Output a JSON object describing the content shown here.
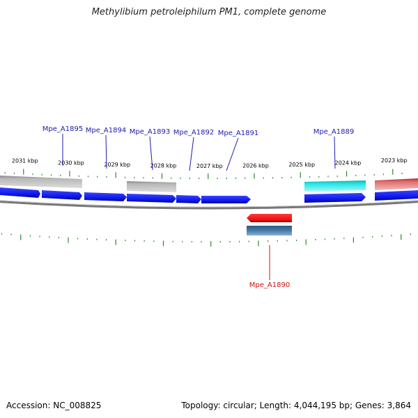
{
  "title": "Methylibium petroleiphilum PM1, complete genome",
  "footer": {
    "accession": "Accession: NC_008825",
    "summary": "Topology: circular; Length: 4,044,195 bp; Genes: 3,864"
  },
  "colors": {
    "forward_cds": "#0a14e6",
    "reverse_cds": "#ee1111",
    "label_forward": "#1a1ab0",
    "label_reverse": "#cc1111",
    "tick": "#2a8a2a",
    "backbone": "#888888",
    "gray_feature": "#b8b8b8",
    "cyan_feature": "#22e6e6",
    "pink_feature": "#e07070",
    "steel_feature": "#4a7aa8"
  },
  "scale": {
    "unit": "kbp",
    "labels": [
      {
        "kbp": 2031,
        "text": "2031 kbp"
      },
      {
        "kbp": 2030,
        "text": "2030 kbp"
      },
      {
        "kbp": 2029,
        "text": "2029 kbp"
      },
      {
        "kbp": 2028,
        "text": "2028 kbp"
      },
      {
        "kbp": 2027,
        "text": "2027 kbp"
      },
      {
        "kbp": 2026,
        "text": "2026 kbp"
      },
      {
        "kbp": 2025,
        "text": "2025 kbp"
      },
      {
        "kbp": 2024,
        "text": "2024 kbp"
      },
      {
        "kbp": 2023,
        "text": "2023 kbp"
      }
    ]
  },
  "gene_labels": [
    {
      "id": "Mpe_A1895",
      "strand": "forward"
    },
    {
      "id": "Mpe_A1894",
      "strand": "forward"
    },
    {
      "id": "Mpe_A1893",
      "strand": "forward"
    },
    {
      "id": "Mpe_A1892",
      "strand": "forward"
    },
    {
      "id": "Mpe_A1891",
      "strand": "forward"
    },
    {
      "id": "Mpe_A1889",
      "strand": "forward"
    },
    {
      "id": "Mpe_A1890",
      "strand": "reverse"
    }
  ]
}
